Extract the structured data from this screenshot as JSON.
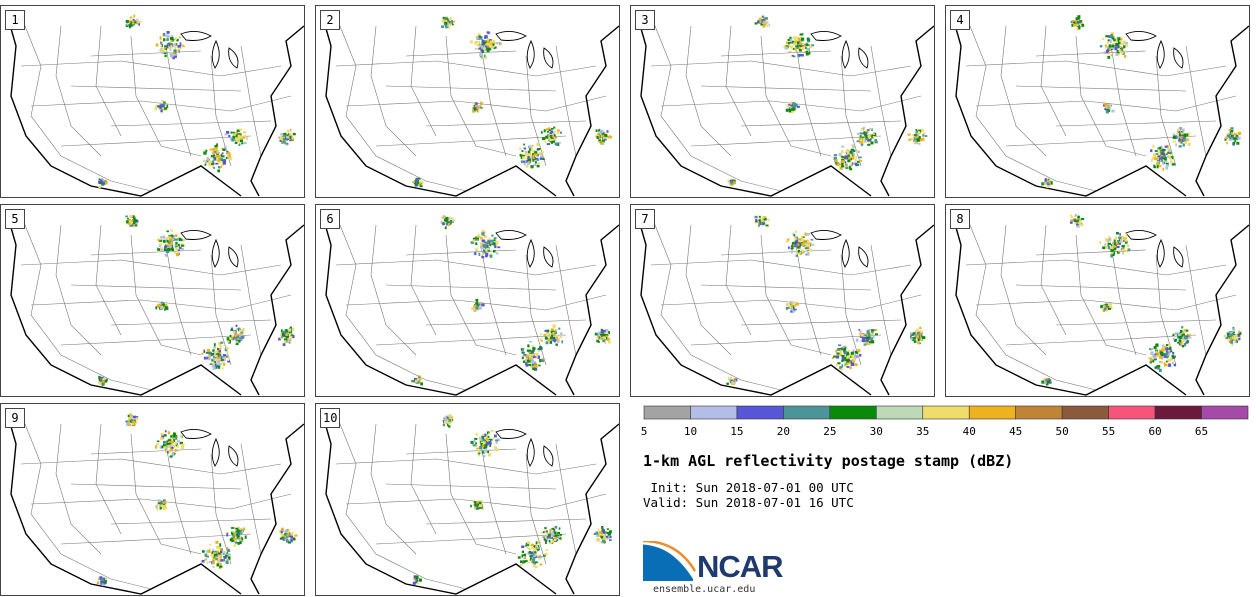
{
  "panels": [
    "1",
    "2",
    "3",
    "4",
    "5",
    "6",
    "7",
    "8",
    "9",
    "10"
  ],
  "colorbar": {
    "colors": [
      "#a3a3a3",
      "#b4bde8",
      "#5656d6",
      "#4b9599",
      "#0a8a0a",
      "#bcdab8",
      "#efdc6a",
      "#eeb11f",
      "#bd8535",
      "#8b5a3c",
      "#f6547a",
      "#6b1a3b",
      "#a54aa9"
    ],
    "ticks": [
      "5",
      "10",
      "15",
      "20",
      "25",
      "30",
      "35",
      "40",
      "45",
      "50",
      "55",
      "60",
      "65"
    ]
  },
  "title": "1-km AGL reflectivity postage stamp (dBZ)",
  "init": " Init: Sun 2018-07-01 00 UTC",
  "valid": "Valid: Sun 2018-07-01 16 UTC",
  "logo": {
    "text": "NCAR",
    "color": "#1e3a6e",
    "accent": "#0a6eb7"
  },
  "site": "ensemble.ucar.edu"
}
